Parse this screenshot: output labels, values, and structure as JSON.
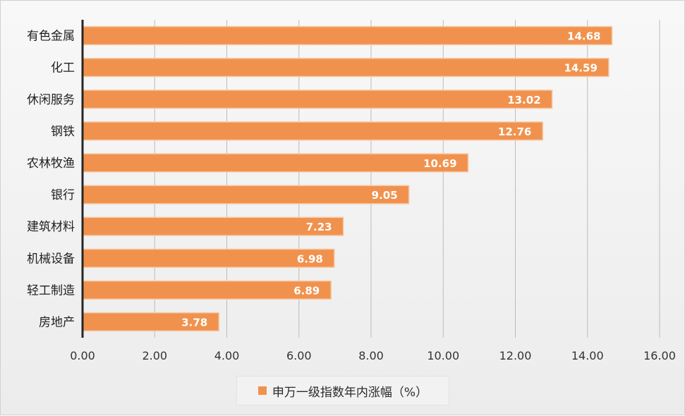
{
  "chart_data": {
    "type": "bar",
    "orientation": "horizontal",
    "categories": [
      "有色金属",
      "化工",
      "休闲服务",
      "钢铁",
      "农林牧渔",
      "银行",
      "建筑材料",
      "机械设备",
      "轻工制造",
      "房地产"
    ],
    "series": [
      {
        "name": "申万一级指数年内涨幅（%）",
        "values": [
          14.68,
          14.59,
          13.02,
          12.76,
          10.69,
          9.05,
          7.23,
          6.98,
          6.89,
          3.78
        ]
      }
    ],
    "data_labels": [
      "14.68",
      "14.59",
      "13.02",
      "12.76",
      "10.69",
      "9.05",
      "7.23",
      "6.98",
      "6.89",
      "3.78"
    ],
    "xlim": [
      0,
      16
    ],
    "xticks": [
      "0.00",
      "2.00",
      "4.00",
      "6.00",
      "8.00",
      "10.00",
      "12.00",
      "14.00",
      "16.00"
    ],
    "title": "",
    "xlabel": "",
    "ylabel": "",
    "grid": "vertical",
    "legend_position": "bottom",
    "colors": {
      "bar": "#f0924e",
      "bar_stroke": "#f7c8a3",
      "grid": "#bcbcbc",
      "axis": "#262626"
    }
  }
}
